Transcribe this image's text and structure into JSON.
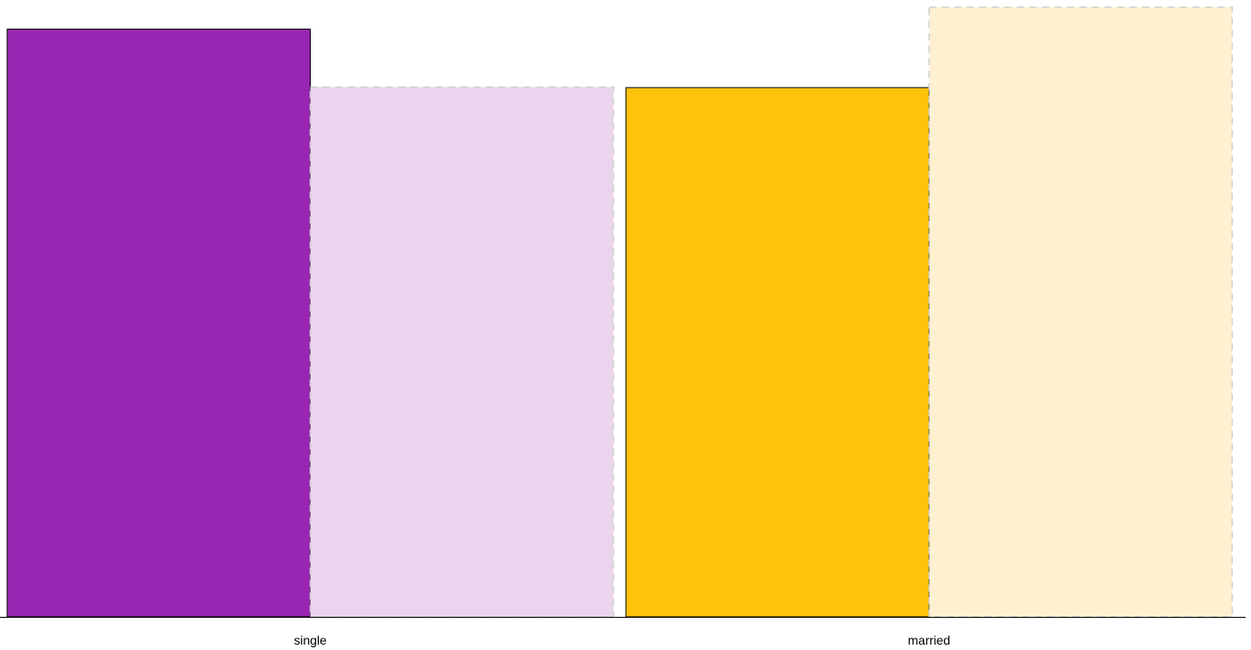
{
  "chart_data": {
    "type": "bar",
    "categories": [
      "single",
      "married"
    ],
    "series": [
      {
        "values": [
          0.964,
          0.868
        ],
        "colors": [
          "#9826B2",
          "#FEC30A"
        ],
        "style": "solid"
      },
      {
        "values": [
          0.869,
          1.0
        ],
        "colors": [
          "#EBD4ED",
          "#FFF0D1"
        ],
        "style": "dashed-light"
      }
    ],
    "ylim": [
      0,
      1
    ],
    "grid": false,
    "legend": "none",
    "title": "",
    "xlabel": "",
    "ylabel": ""
  }
}
